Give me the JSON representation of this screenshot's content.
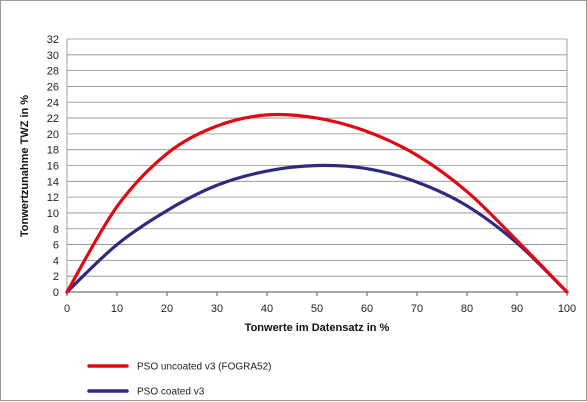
{
  "chart_data": {
    "type": "line",
    "title": "",
    "xlabel": "Tonwerte im Datensatz in %",
    "ylabel": "Tonwertzunahme TWZ in %",
    "xlim": [
      0,
      100
    ],
    "ylim": [
      0,
      32
    ],
    "x_ticks": [
      "0",
      "10",
      "20",
      "30",
      "40",
      "50",
      "60",
      "70",
      "80",
      "90",
      "100"
    ],
    "y_ticks": [
      "0",
      "2",
      "4",
      "6",
      "8",
      "10",
      "12",
      "14",
      "16",
      "18",
      "20",
      "22",
      "24",
      "26",
      "28",
      "30",
      "32"
    ],
    "grid": "horizontal",
    "legend_position": "bottom-left",
    "x": [
      0,
      10,
      20,
      30,
      40,
      50,
      60,
      70,
      80,
      90,
      100
    ],
    "series": [
      {
        "name": "PSO uncoated v3 (FOGRA52)",
        "color": "#e30613",
        "values": [
          0,
          10.8,
          17.5,
          21.0,
          22.4,
          22.0,
          20.3,
          17.3,
          12.7,
          6.5,
          0
        ]
      },
      {
        "name": "PSO coated v3",
        "color": "#2e2a7e",
        "values": [
          0,
          6.0,
          10.3,
          13.5,
          15.3,
          16.0,
          15.6,
          13.9,
          10.9,
          6.2,
          0
        ]
      }
    ]
  }
}
